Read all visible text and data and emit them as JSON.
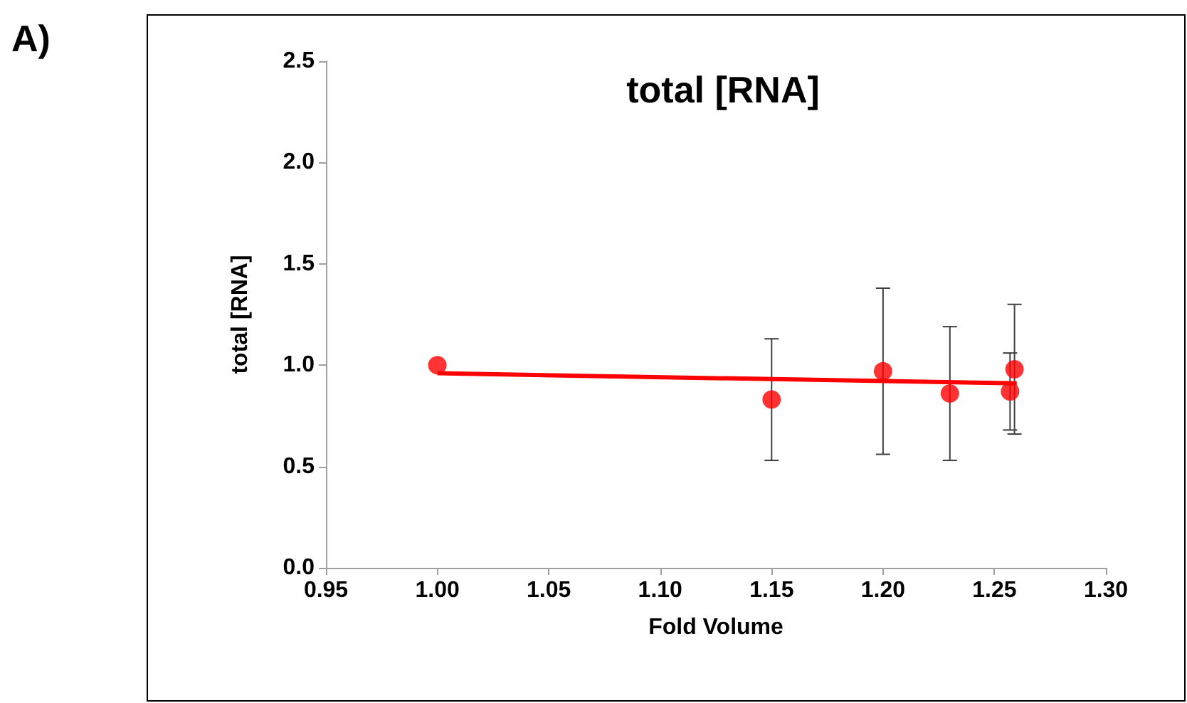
{
  "chart_data": {
    "type": "scatter",
    "title": "total [RNA]",
    "xlabel": "Fold Volume",
    "ylabel": "total [RNA]",
    "annotations": [
      "A)"
    ],
    "x": [
      1.0,
      1.15,
      1.2,
      1.23,
      1.257,
      1.259
    ],
    "series": [
      {
        "color": "#ff0000",
        "values": [
          1.0,
          0.83,
          0.97,
          0.86,
          0.87,
          0.98
        ],
        "errors": [
          null,
          0.3,
          0.41,
          0.33,
          0.19,
          0.32
        ]
      },
      {
        "type": "line",
        "color": "#ff0000",
        "x": [
          1.0,
          1.26
        ],
        "values": [
          0.96,
          0.91
        ],
        "marker": "none"
      }
    ],
    "xlim": [
      0.95,
      1.3
    ],
    "xticks": [
      {
        "value": 0.95,
        "label": "0.95"
      },
      {
        "value": 1.0,
        "label": "1.00"
      },
      {
        "value": 1.05,
        "label": "1.05"
      },
      {
        "value": 1.1,
        "label": "1.10"
      },
      {
        "value": 1.15,
        "label": "1.15"
      },
      {
        "value": 1.2,
        "label": "1.20"
      },
      {
        "value": 1.25,
        "label": "1.25"
      },
      {
        "value": 1.3,
        "label": "1.30"
      }
    ],
    "ylim": [
      0,
      2.5
    ],
    "yticks": [
      {
        "value": 0,
        "label": "0.0"
      },
      {
        "value": 0.5,
        "label": "0.5"
      },
      {
        "value": 1,
        "label": "1.0"
      },
      {
        "value": 1.5,
        "label": "1.5"
      },
      {
        "value": 2,
        "label": "2.0"
      },
      {
        "value": 2.5,
        "label": "2.5"
      }
    ],
    "grid": false,
    "marker": "circle"
  }
}
